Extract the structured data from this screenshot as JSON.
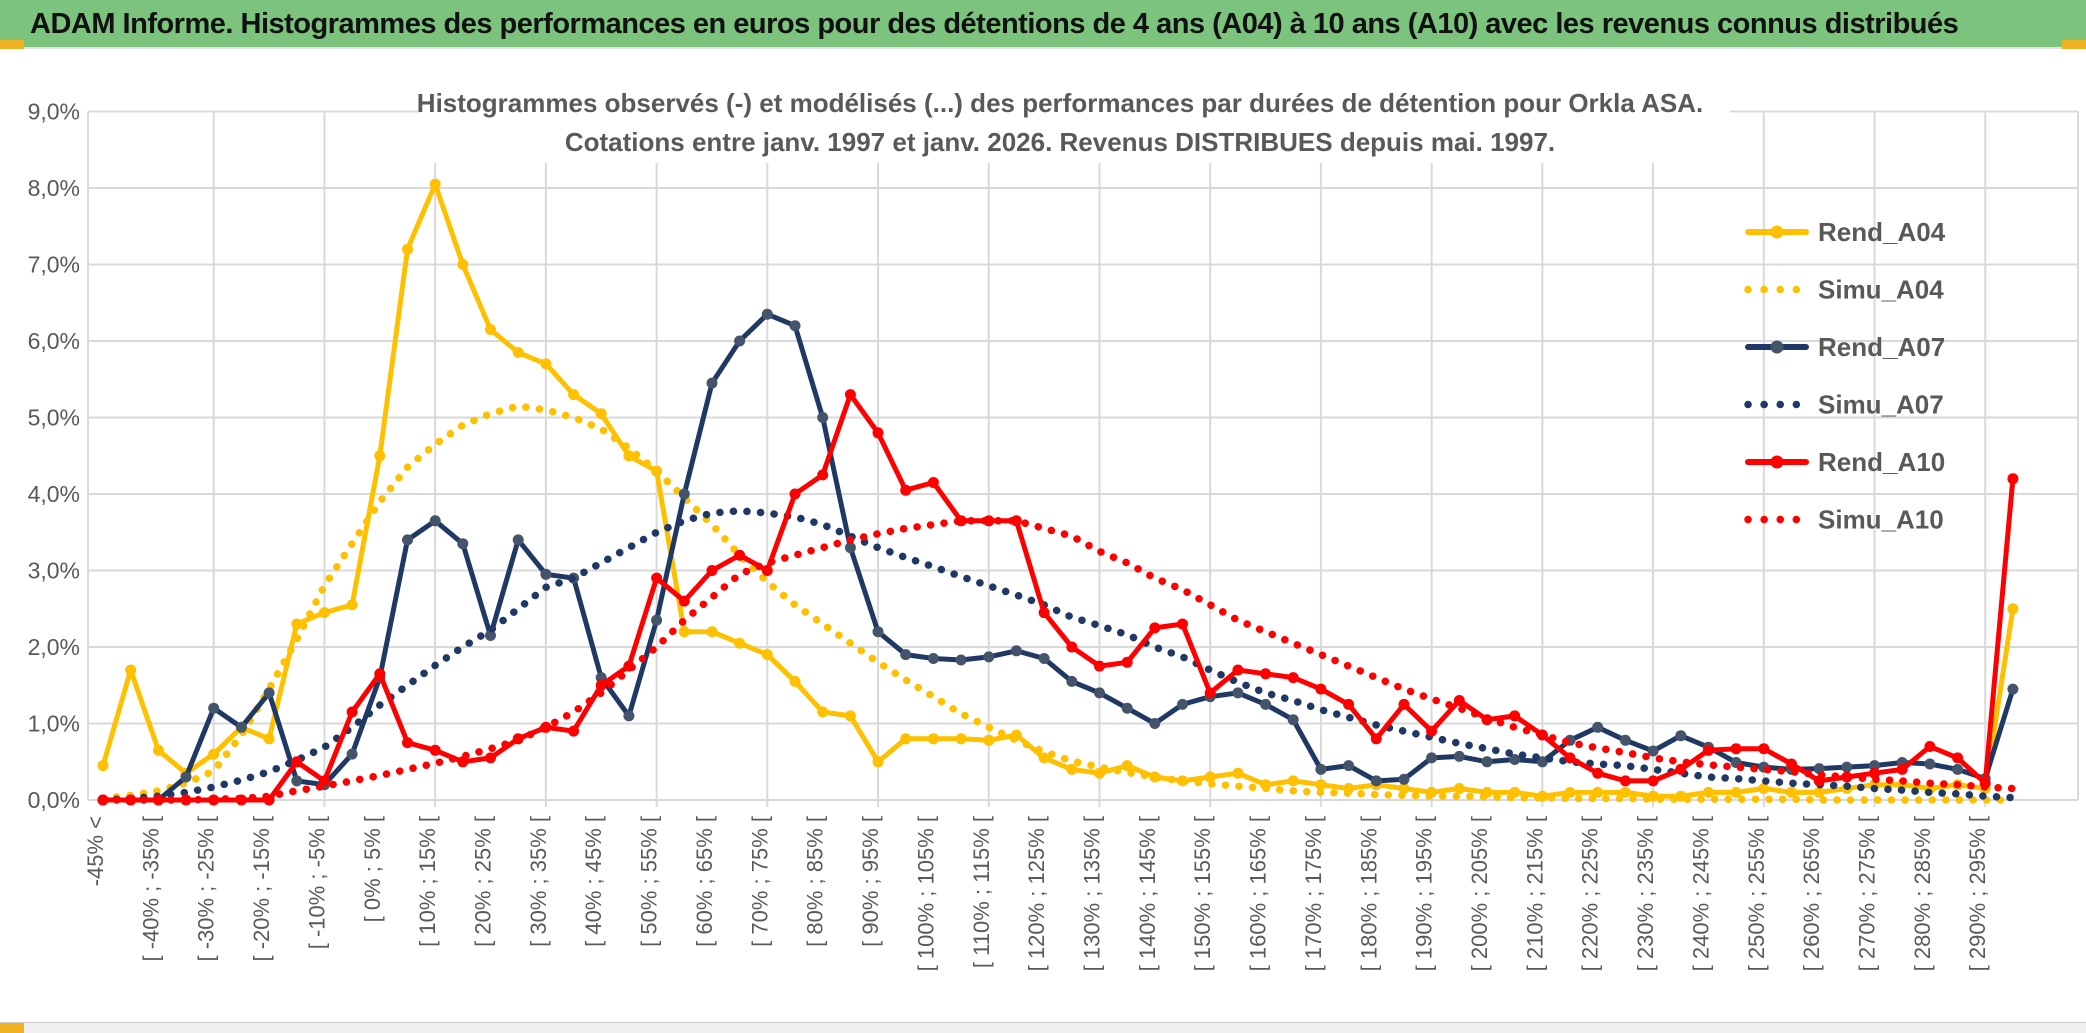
{
  "header": {
    "title": "ADAM Informe. Histogrammes des performances en euros pour des détentions de 4 ans (A04) à 10 ans (A10) avec les revenus connus distribués"
  },
  "chart_data": {
    "type": "line",
    "title_line1": "Histogrammes observés (-) et modélisés (...) des performances par durées de détention pour Orkla ASA.",
    "title_line2": "Cotations entre janv. 1997 et janv. 2026. Revenus DISTRIBUES depuis mai. 1997.",
    "ylim": [
      0,
      9
    ],
    "grid": true,
    "legend_position": "right",
    "y_tick_labels": [
      "9,0%",
      "8,0%",
      "7,0%",
      "6,0%",
      "5,0%",
      "4,0%",
      "3,0%",
      "2,0%",
      "1,0%",
      "0,0%"
    ],
    "bin_count": 70,
    "x_tick_every": 2,
    "x_tick_labels": [
      "-45% <",
      "[ -40% ; -35% [",
      "[ -30% ; -25% [",
      "[ -20% ; -15% [",
      "[ -10% ; -5% [",
      "[ 0% ; 5% [",
      "[ 10% ; 15% [",
      "[ 20% ; 25% [",
      "[ 30% ; 35% [",
      "[ 40% ; 45% [",
      "[ 50% ; 55% [",
      "[ 60% ; 65% [",
      "[ 70% ; 75% [",
      "[ 80% ; 85% [",
      "[ 90% ; 95% [",
      "[ 100% ; 105% [",
      "[ 110% ; 115% [",
      "[ 120% ; 125% [",
      "[ 130% ; 135% [",
      "[ 140% ; 145% [",
      "[ 150% ; 155% [",
      "[ 160% ; 165% [",
      "[ 170% ; 175% [",
      "[ 180% ; 185% [",
      "[ 190% ; 195% [",
      "[ 200% ; 205% [",
      "[ 210% ; 215% [",
      "[ 220% ; 225% [",
      "[ 230% ; 235% [",
      "[ 240% ; 245% [",
      "[ 250% ; 255% [",
      "[ 260% ; 265% [",
      "[ 270% ; 275% [",
      "[ 280% ; 285% [",
      "[ 290% ; 295% ["
    ],
    "colors": {
      "gold": "#FFC000",
      "navy": "#1F3864",
      "navy_marker": "#44546A",
      "red": "#FF0000",
      "grid": "#D9D9D9",
      "text": "#595959"
    },
    "series": [
      {
        "name": "Rend_A04",
        "style": "solid",
        "color": "#FFC000",
        "marker_color": "#FFC000",
        "values": [
          0.45,
          1.7,
          0.65,
          0.35,
          0.6,
          0.95,
          0.8,
          2.3,
          2.45,
          2.55,
          4.5,
          7.2,
          8.05,
          7.0,
          6.15,
          5.85,
          5.7,
          5.3,
          5.05,
          4.5,
          4.3,
          2.2,
          2.2,
          2.05,
          1.9,
          1.55,
          1.15,
          1.1,
          0.5,
          0.8,
          0.8,
          0.8,
          0.78,
          0.85,
          0.55,
          0.4,
          0.35,
          0.45,
          0.3,
          0.25,
          0.3,
          0.35,
          0.2,
          0.25,
          0.2,
          0.15,
          0.2,
          0.15,
          0.1,
          0.15,
          0.1,
          0.1,
          0.05,
          0.1,
          0.1,
          0.1,
          0.05,
          0.05,
          0.1,
          0.1,
          0.15,
          0.1,
          0.1,
          0.15,
          0.2,
          0.2,
          0.15,
          0.2,
          0.15,
          2.5
        ]
      },
      {
        "name": "Simu_A04",
        "style": "dotted",
        "color": "#FFC000",
        "marker_color": "#FFC000",
        "values": [
          0.02,
          0.06,
          0.12,
          0.22,
          0.38,
          0.85,
          1.45,
          2.1,
          2.8,
          3.35,
          3.9,
          4.35,
          4.65,
          4.9,
          5.05,
          5.15,
          5.1,
          5.0,
          4.85,
          4.6,
          4.3,
          3.95,
          3.6,
          3.2,
          2.85,
          2.55,
          2.3,
          2.05,
          1.8,
          1.57,
          1.35,
          1.13,
          0.95,
          0.78,
          0.63,
          0.51,
          0.43,
          0.36,
          0.3,
          0.25,
          0.21,
          0.18,
          0.15,
          0.12,
          0.1,
          0.09,
          0.07,
          0.06,
          0.05,
          0.05,
          0.04,
          0.03,
          0.03,
          0.02,
          0.02,
          0.02,
          0.01,
          0.01,
          0.01,
          0.01,
          0.01,
          0.01,
          0,
          0,
          0,
          0,
          0,
          0,
          0,
          0
        ]
      },
      {
        "name": "Rend_A07",
        "style": "solid",
        "color": "#1F3864",
        "marker_color": "#44546A",
        "values": [
          0,
          0,
          0,
          0.3,
          1.2,
          0.95,
          1.4,
          0.25,
          0.2,
          0.6,
          1.6,
          3.4,
          3.65,
          3.35,
          2.15,
          3.4,
          2.95,
          2.9,
          1.6,
          1.1,
          2.35,
          4.0,
          5.45,
          6.0,
          6.35,
          6.2,
          5.0,
          3.3,
          2.2,
          1.9,
          1.85,
          1.83,
          1.87,
          1.95,
          1.85,
          1.55,
          1.4,
          1.2,
          1.0,
          1.25,
          1.35,
          1.4,
          1.25,
          1.05,
          0.4,
          0.45,
          0.25,
          0.27,
          0.55,
          0.57,
          0.5,
          0.53,
          0.5,
          0.78,
          0.95,
          0.78,
          0.64,
          0.84,
          0.69,
          0.49,
          0.43,
          0.4,
          0.41,
          0.43,
          0.45,
          0.49,
          0.47,
          0.4,
          0.28,
          1.45
        ]
      },
      {
        "name": "Simu_A07",
        "style": "dotted",
        "color": "#1F3864",
        "marker_color": "#1F3864",
        "values": [
          0,
          0.02,
          0.05,
          0.1,
          0.17,
          0.26,
          0.37,
          0.52,
          0.69,
          0.95,
          1.24,
          1.5,
          1.76,
          2.0,
          2.22,
          2.5,
          2.78,
          2.9,
          3.1,
          3.3,
          3.5,
          3.65,
          3.75,
          3.78,
          3.75,
          3.7,
          3.6,
          3.45,
          3.3,
          3.17,
          3.05,
          2.92,
          2.8,
          2.68,
          2.55,
          2.39,
          2.28,
          2.16,
          2.0,
          1.87,
          1.7,
          1.54,
          1.4,
          1.3,
          1.18,
          1.08,
          0.98,
          0.9,
          0.82,
          0.74,
          0.67,
          0.6,
          0.55,
          0.5,
          0.47,
          0.45,
          0.4,
          0.35,
          0.3,
          0.28,
          0.25,
          0.22,
          0.2,
          0.18,
          0.15,
          0.13,
          0.1,
          0.08,
          0.05,
          0.03
        ]
      },
      {
        "name": "Rend_A10",
        "style": "solid",
        "color": "#FF0000",
        "marker_color": "#FF0000",
        "values": [
          0,
          0,
          0,
          0,
          0,
          0,
          0,
          0.5,
          0.25,
          1.15,
          1.65,
          0.75,
          0.65,
          0.5,
          0.55,
          0.8,
          0.95,
          0.9,
          1.5,
          1.75,
          2.9,
          2.6,
          3.0,
          3.2,
          3.0,
          4.0,
          4.25,
          5.3,
          4.8,
          4.05,
          4.15,
          3.65,
          3.65,
          3.65,
          2.45,
          2.0,
          1.75,
          1.8,
          2.25,
          2.3,
          1.4,
          1.7,
          1.65,
          1.6,
          1.45,
          1.25,
          0.8,
          1.25,
          0.9,
          1.3,
          1.05,
          1.1,
          0.85,
          0.55,
          0.35,
          0.25,
          0.25,
          0.4,
          0.65,
          0.67,
          0.67,
          0.47,
          0.25,
          0.3,
          0.35,
          0.4,
          0.7,
          0.55,
          0.22,
          4.2
        ]
      },
      {
        "name": "Simu_A10",
        "style": "dotted",
        "color": "#FF0000",
        "marker_color": "#FF0000",
        "values": [
          0,
          0,
          0,
          0,
          0.01,
          0.02,
          0.05,
          0.12,
          0.18,
          0.25,
          0.32,
          0.4,
          0.48,
          0.57,
          0.67,
          0.78,
          0.95,
          1.15,
          1.4,
          1.7,
          2.0,
          2.35,
          2.65,
          2.95,
          3.1,
          3.2,
          3.3,
          3.4,
          3.48,
          3.55,
          3.6,
          3.65,
          3.65,
          3.65,
          3.55,
          3.45,
          3.25,
          3.1,
          2.9,
          2.75,
          2.55,
          2.35,
          2.2,
          2.05,
          1.9,
          1.75,
          1.6,
          1.45,
          1.32,
          1.2,
          1.07,
          0.95,
          0.85,
          0.75,
          0.68,
          0.62,
          0.55,
          0.5,
          0.46,
          0.43,
          0.4,
          0.37,
          0.33,
          0.3,
          0.27,
          0.25,
          0.22,
          0.2,
          0.17,
          0.15
        ]
      }
    ],
    "legend": [
      "Rend_A04",
      "Simu_A04",
      "Rend_A07",
      "Simu_A07",
      "Rend_A10",
      "Simu_A10"
    ]
  }
}
